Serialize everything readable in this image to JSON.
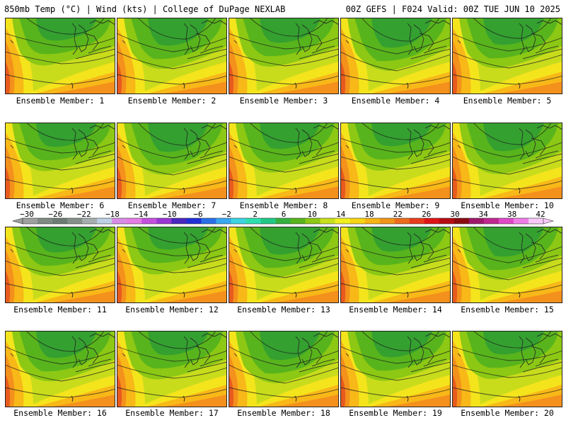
{
  "header": {
    "left": "850mb Temp (°C) | Wind (kts) | College of DuPage NEXLAB",
    "right": "00Z GEFS | F024 Valid: 00Z TUE JUN 10 2025"
  },
  "members": [
    "Ensemble Member: 1",
    "Ensemble Member: 2",
    "Ensemble Member: 3",
    "Ensemble Member: 4",
    "Ensemble Member: 5",
    "Ensemble Member: 6",
    "Ensemble Member: 7",
    "Ensemble Member: 8",
    "Ensemble Member: 9",
    "Ensemble Member: 10",
    "Ensemble Member: 11",
    "Ensemble Member: 12",
    "Ensemble Member: 13",
    "Ensemble Member: 14",
    "Ensemble Member: 15",
    "Ensemble Member: 16",
    "Ensemble Member: 17",
    "Ensemble Member: 18",
    "Ensemble Member: 19",
    "Ensemble Member: 20"
  ],
  "colorbar": {
    "ticks": [
      "−30",
      "−26",
      "−22",
      "−18",
      "−14",
      "−10",
      "−6",
      "−2",
      "2",
      "6",
      "10",
      "14",
      "18",
      "22",
      "26",
      "30",
      "34",
      "38",
      "42"
    ],
    "colors": [
      "#9ea0a0",
      "#7f8a83",
      "#6c7c74",
      "#85908a",
      "#a6aeb0",
      "#bdd0e6",
      "#d98ce6",
      "#e67ce6",
      "#c450e0",
      "#9a36d6",
      "#4a28c0",
      "#2030d6",
      "#2a6ee8",
      "#38a8f0",
      "#3cd4e0",
      "#2ee0b0",
      "#20c888",
      "#34b040",
      "#58b41c",
      "#8cc814",
      "#c8e01c",
      "#f0f01c",
      "#f8d414",
      "#f8b414",
      "#f09418",
      "#ec6c1c",
      "#e83c1c",
      "#e01418",
      "#b80c14",
      "#8a0a10",
      "#a0186c",
      "#c02890",
      "#e048c8",
      "#f07ce8",
      "#f8c8f8"
    ]
  }
}
